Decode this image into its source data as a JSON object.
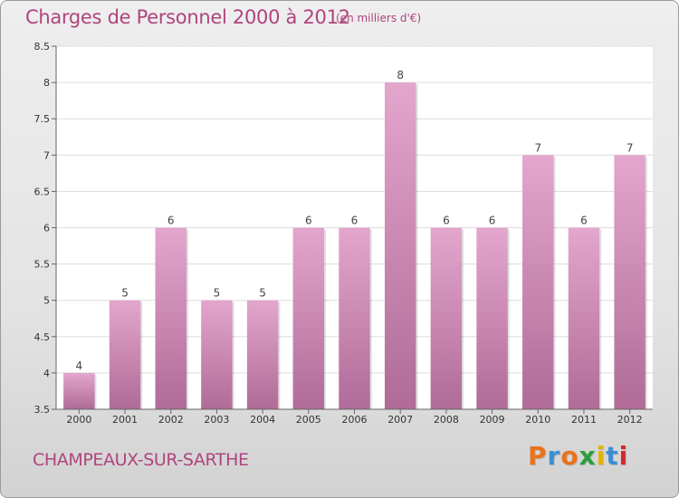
{
  "header": {
    "title": "Charges de Personnel 2000 à 2012",
    "subtitle": "(en milliers d'€)"
  },
  "footer": {
    "commune": "CHAMPEAUX-SUR-SARTHE",
    "brand": "Proxiti",
    "brand_colors": [
      "#e8731e",
      "#3b8fd1",
      "#e8731e",
      "#2a9d3a",
      "#e1b400",
      "#3b8fd1",
      "#d8262d"
    ]
  },
  "chart_data": {
    "type": "bar",
    "categories": [
      "2000",
      "2001",
      "2002",
      "2003",
      "2004",
      "2005",
      "2006",
      "2007",
      "2008",
      "2009",
      "2010",
      "2011",
      "2012"
    ],
    "values": [
      4,
      5,
      6,
      5,
      5,
      6,
      6,
      8,
      6,
      6,
      7,
      6,
      7
    ],
    "data_labels": [
      "4",
      "5",
      "6",
      "5",
      "5",
      "6",
      "6",
      "8",
      "6",
      "6",
      "7",
      "6",
      "7"
    ],
    "ylim": [
      3.5,
      8.5
    ],
    "yticks": [
      3.5,
      4,
      4.5,
      5,
      5.5,
      6,
      6.5,
      7,
      7.5,
      8,
      8.5
    ],
    "ytick_labels": [
      "3.5",
      "4",
      "4.5",
      "5",
      "5.5",
      "6",
      "6.5",
      "7",
      "7.5",
      "8",
      "8.5"
    ],
    "grid": "horizontal",
    "bar_color_top": "#e3a6cd",
    "bar_color_bottom": "#b06b98",
    "plot_background": "#ffffff"
  }
}
